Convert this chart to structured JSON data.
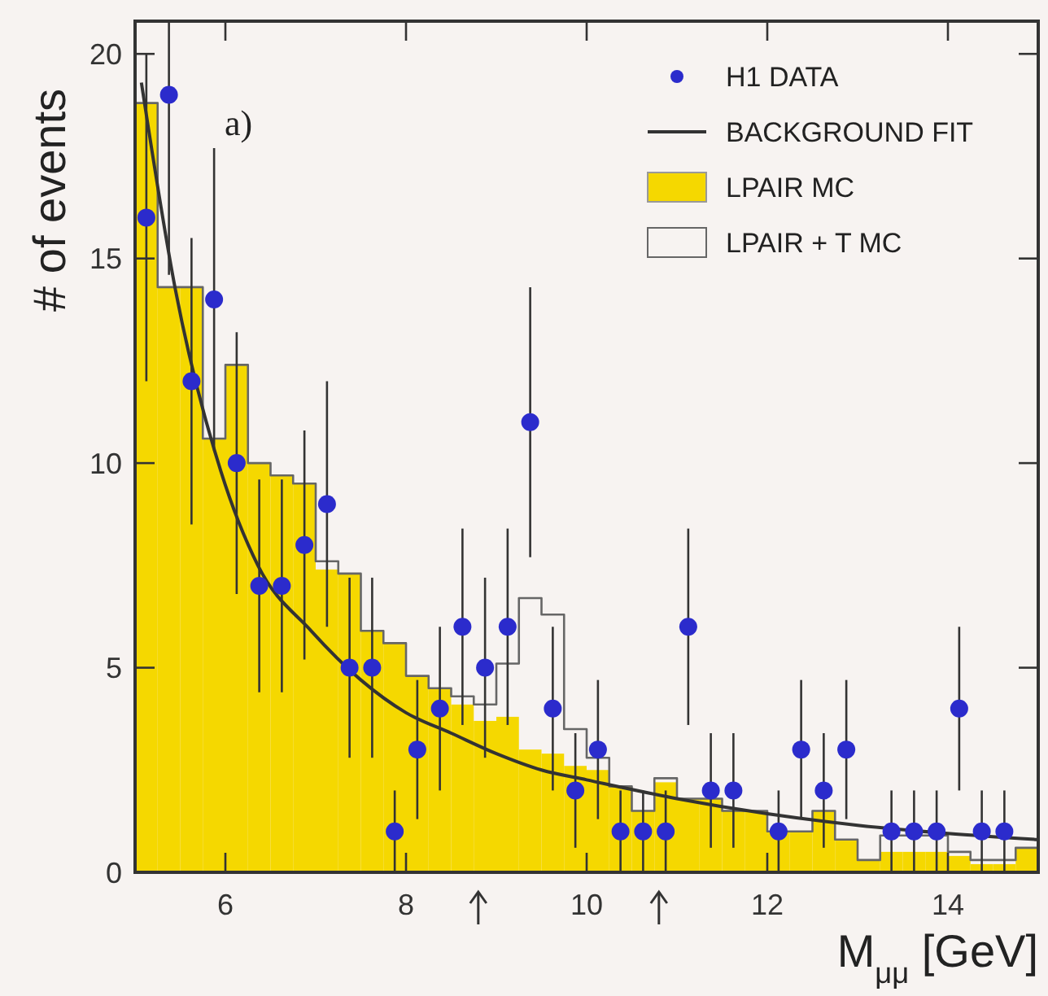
{
  "chart_data": {
    "type": "histogram",
    "xlabel": "M$_{μμ}$ [GeV]",
    "ylabel": "# of events",
    "annotations": [
      "a)"
    ],
    "bins": [
      5,
      5.25,
      5.5,
      5.75,
      6,
      6.25,
      6.5,
      6.75,
      7,
      7.25,
      7.5,
      7.75,
      8,
      8.25,
      8.5,
      8.75,
      9,
      9.25,
      9.5,
      9.75,
      10,
      10.25,
      10.5,
      10.75,
      11,
      11.25,
      11.5,
      11.75,
      12,
      12.25,
      12.5,
      12.75,
      13,
      13.25,
      13.5,
      13.75,
      14,
      14.25,
      14.5,
      14.75,
      15
    ],
    "series": [
      {
        "name": "H1 DATA",
        "type": "scatter",
        "marker": "circle",
        "color": "#2b2bcc",
        "x": [
          5.125,
          5.375,
          5.625,
          5.875,
          6.125,
          6.375,
          6.625,
          6.875,
          7.125,
          7.375,
          7.625,
          7.875,
          8.125,
          8.375,
          8.625,
          8.875,
          9.125,
          9.375,
          9.625,
          9.875,
          10.125,
          10.375,
          10.625,
          10.875,
          11.125,
          11.375,
          11.625,
          12.125,
          12.375,
          12.625,
          12.875,
          13.375,
          13.625,
          13.875,
          14.125,
          14.375,
          14.625
        ],
        "values": [
          16,
          19,
          12,
          14,
          10,
          7,
          7,
          8,
          9,
          5,
          5,
          1,
          3,
          4,
          6,
          5,
          6,
          11,
          4,
          2,
          3,
          1,
          1,
          1,
          6,
          2,
          2,
          1,
          3,
          2,
          3,
          1,
          1,
          1,
          4,
          1,
          1
        ],
        "errors": [
          4,
          [
            14.6,
            20.8
          ],
          3.5,
          3.7,
          3.2,
          2.6,
          2.6,
          2.8,
          3,
          2.2,
          2.2,
          1,
          1.7,
          2,
          2.4,
          2.2,
          2.4,
          3.3,
          2,
          1.4,
          1.7,
          1,
          1,
          1,
          2.4,
          1.4,
          1.4,
          1,
          1.7,
          1.4,
          1.7,
          1,
          1,
          1,
          2,
          1,
          1
        ]
      },
      {
        "name": "BACKGROUND FIT",
        "type": "line",
        "color": "#333333",
        "x": [
          5.07,
          5.45,
          5.95,
          6.36,
          6.95,
          7.5,
          8,
          8.5,
          9,
          9.5,
          10,
          11,
          12,
          13,
          14,
          15
        ],
        "values": [
          19.3,
          14.2,
          9.8,
          7.5,
          5.9,
          4.7,
          3.9,
          3.4,
          2.9,
          2.5,
          2.26,
          1.8,
          1.43,
          1.15,
          0.95,
          0.8
        ]
      },
      {
        "name": "LPAIR MC",
        "color": "#f5d800",
        "values": [
          18.8,
          14.3,
          14.3,
          10.6,
          12.4,
          10.0,
          9.7,
          9.5,
          7.4,
          7.3,
          5.9,
          5.6,
          4.8,
          4.5,
          4.1,
          3.7,
          3.8,
          3.0,
          2.9,
          2.6,
          2.5,
          2.1,
          1.5,
          2.2,
          1.8,
          1.8,
          1.5,
          1.5,
          1.0,
          1.0,
          1.5,
          0.8,
          0.3,
          0.5,
          0.5,
          0.5,
          0.4,
          0.2,
          0.2,
          0.6
        ]
      },
      {
        "name": "LPAIR + T MC",
        "type": "step",
        "color": "#666666",
        "x": [
          5,
          5.25,
          5.5,
          5.75,
          6,
          6.25,
          6.5,
          6.75,
          7,
          7.25,
          7.5,
          7.75,
          8,
          8.25,
          8.5,
          8.75,
          9,
          9.25,
          9.5,
          9.75,
          10,
          10.25,
          10.5,
          10.75,
          11,
          11.25,
          11.5,
          11.75,
          12,
          12.25,
          12.5,
          12.75,
          13,
          13.25,
          13.5,
          13.75,
          14,
          14.25,
          14.5,
          14.75,
          15
        ],
        "values": [
          18.8,
          14.3,
          14.3,
          10.6,
          12.4,
          10.0,
          9.7,
          9.5,
          7.6,
          7.3,
          5.9,
          5.6,
          4.8,
          4.5,
          4.3,
          4.1,
          5.1,
          6.7,
          6.3,
          3.5,
          2.8,
          2.1,
          1.5,
          2.3,
          1.8,
          1.8,
          1.5,
          1.5,
          1.0,
          1.0,
          1.5,
          0.8,
          0.3,
          0.9,
          0.9,
          0.9,
          0.5,
          0.3,
          0.3,
          0.6,
          0.6
        ]
      }
    ],
    "xlim": [
      5,
      15
    ],
    "ylim": [
      0,
      20.8
    ],
    "xticks": [
      6,
      8,
      10,
      12,
      14
    ],
    "yticks": [
      0,
      5,
      10,
      15,
      20
    ],
    "grid": false,
    "legend": "top right"
  }
}
